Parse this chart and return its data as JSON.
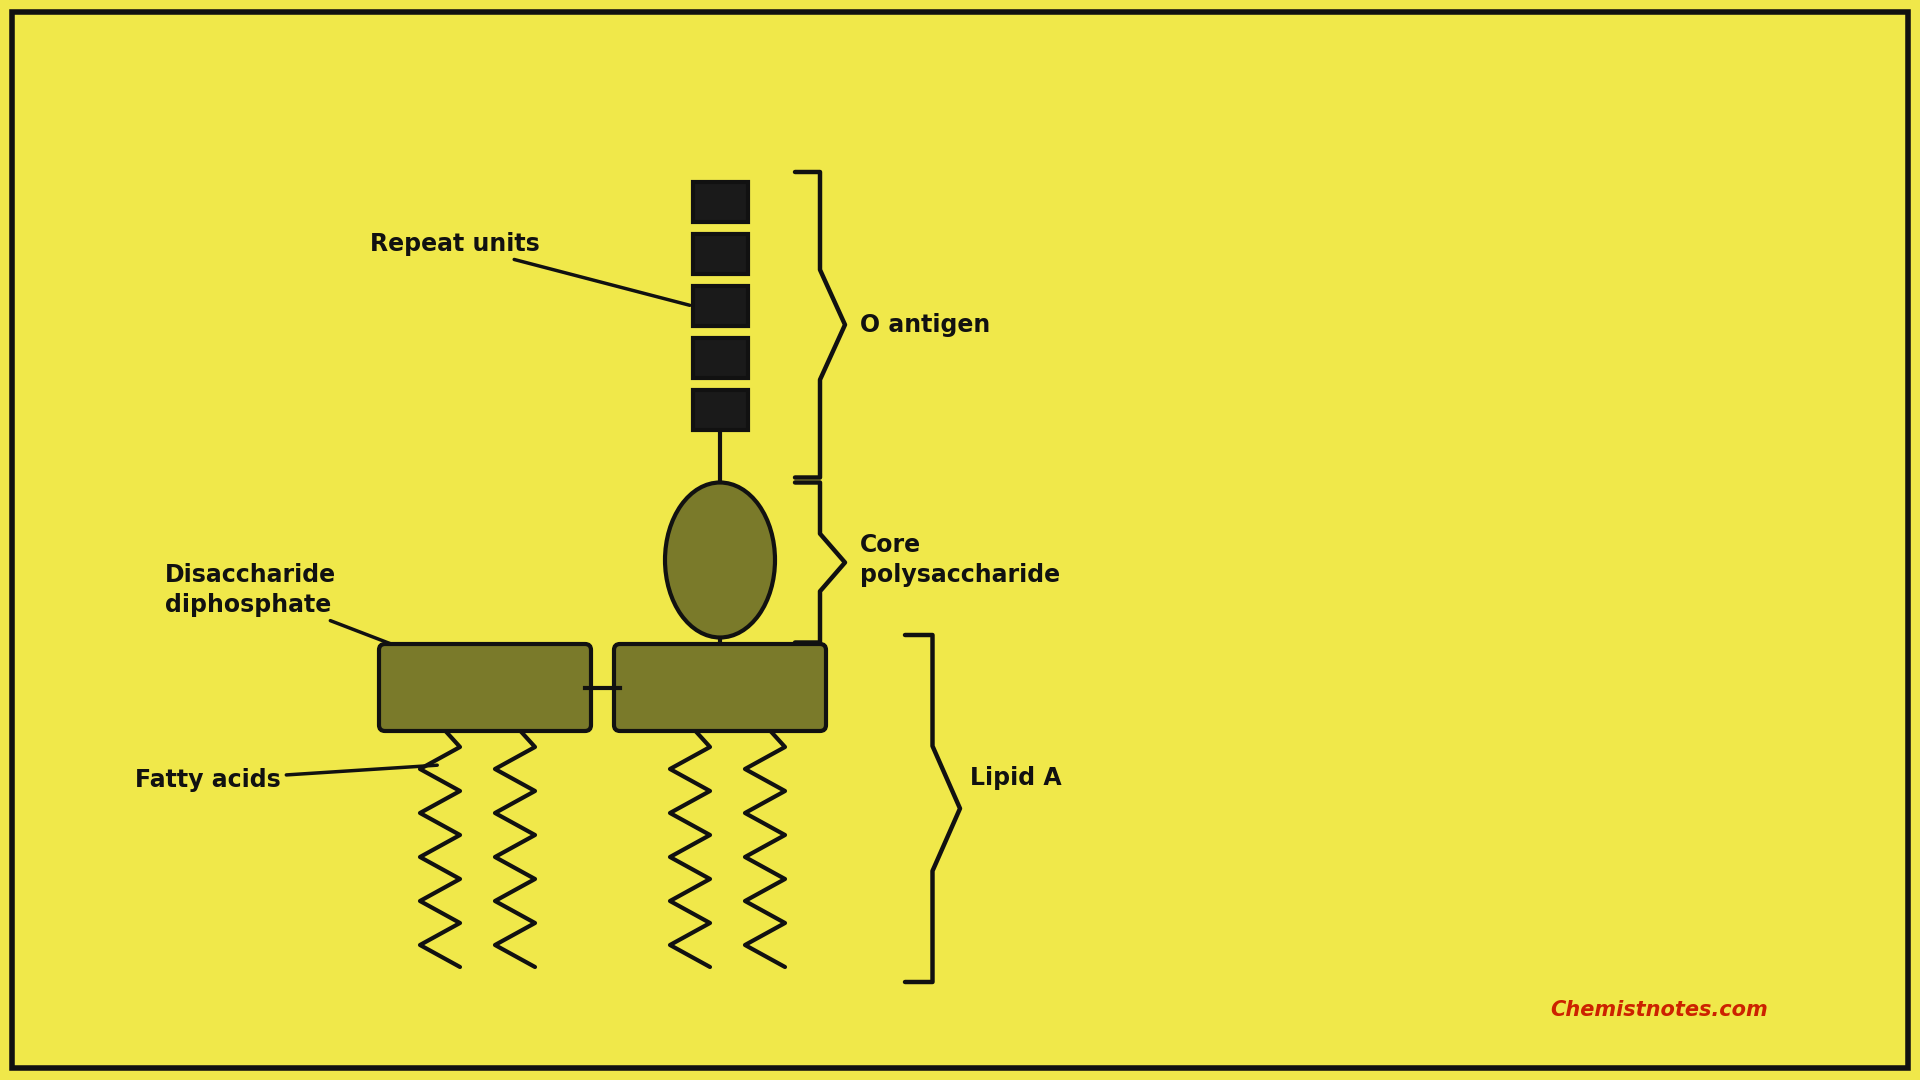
{
  "bg_color": "#f0e84a",
  "border_color": "#111111",
  "shape_fill": "#7a7a2a",
  "shape_edge": "#111111",
  "line_color": "#111111",
  "text_color": "#111111",
  "red_text": "#cc2200",
  "sq_fill": "#1a1a1a",
  "labels": {
    "repeat_units": "Repeat units",
    "o_antigen": "O antigen",
    "core_poly": "Core\npolysaccharide",
    "disaccharide": "Disaccharide\ndiphosphate",
    "fatty_acids": "Fatty acids",
    "lipid_a": "Lipid A",
    "watermark": "Chemistnotes.com"
  }
}
